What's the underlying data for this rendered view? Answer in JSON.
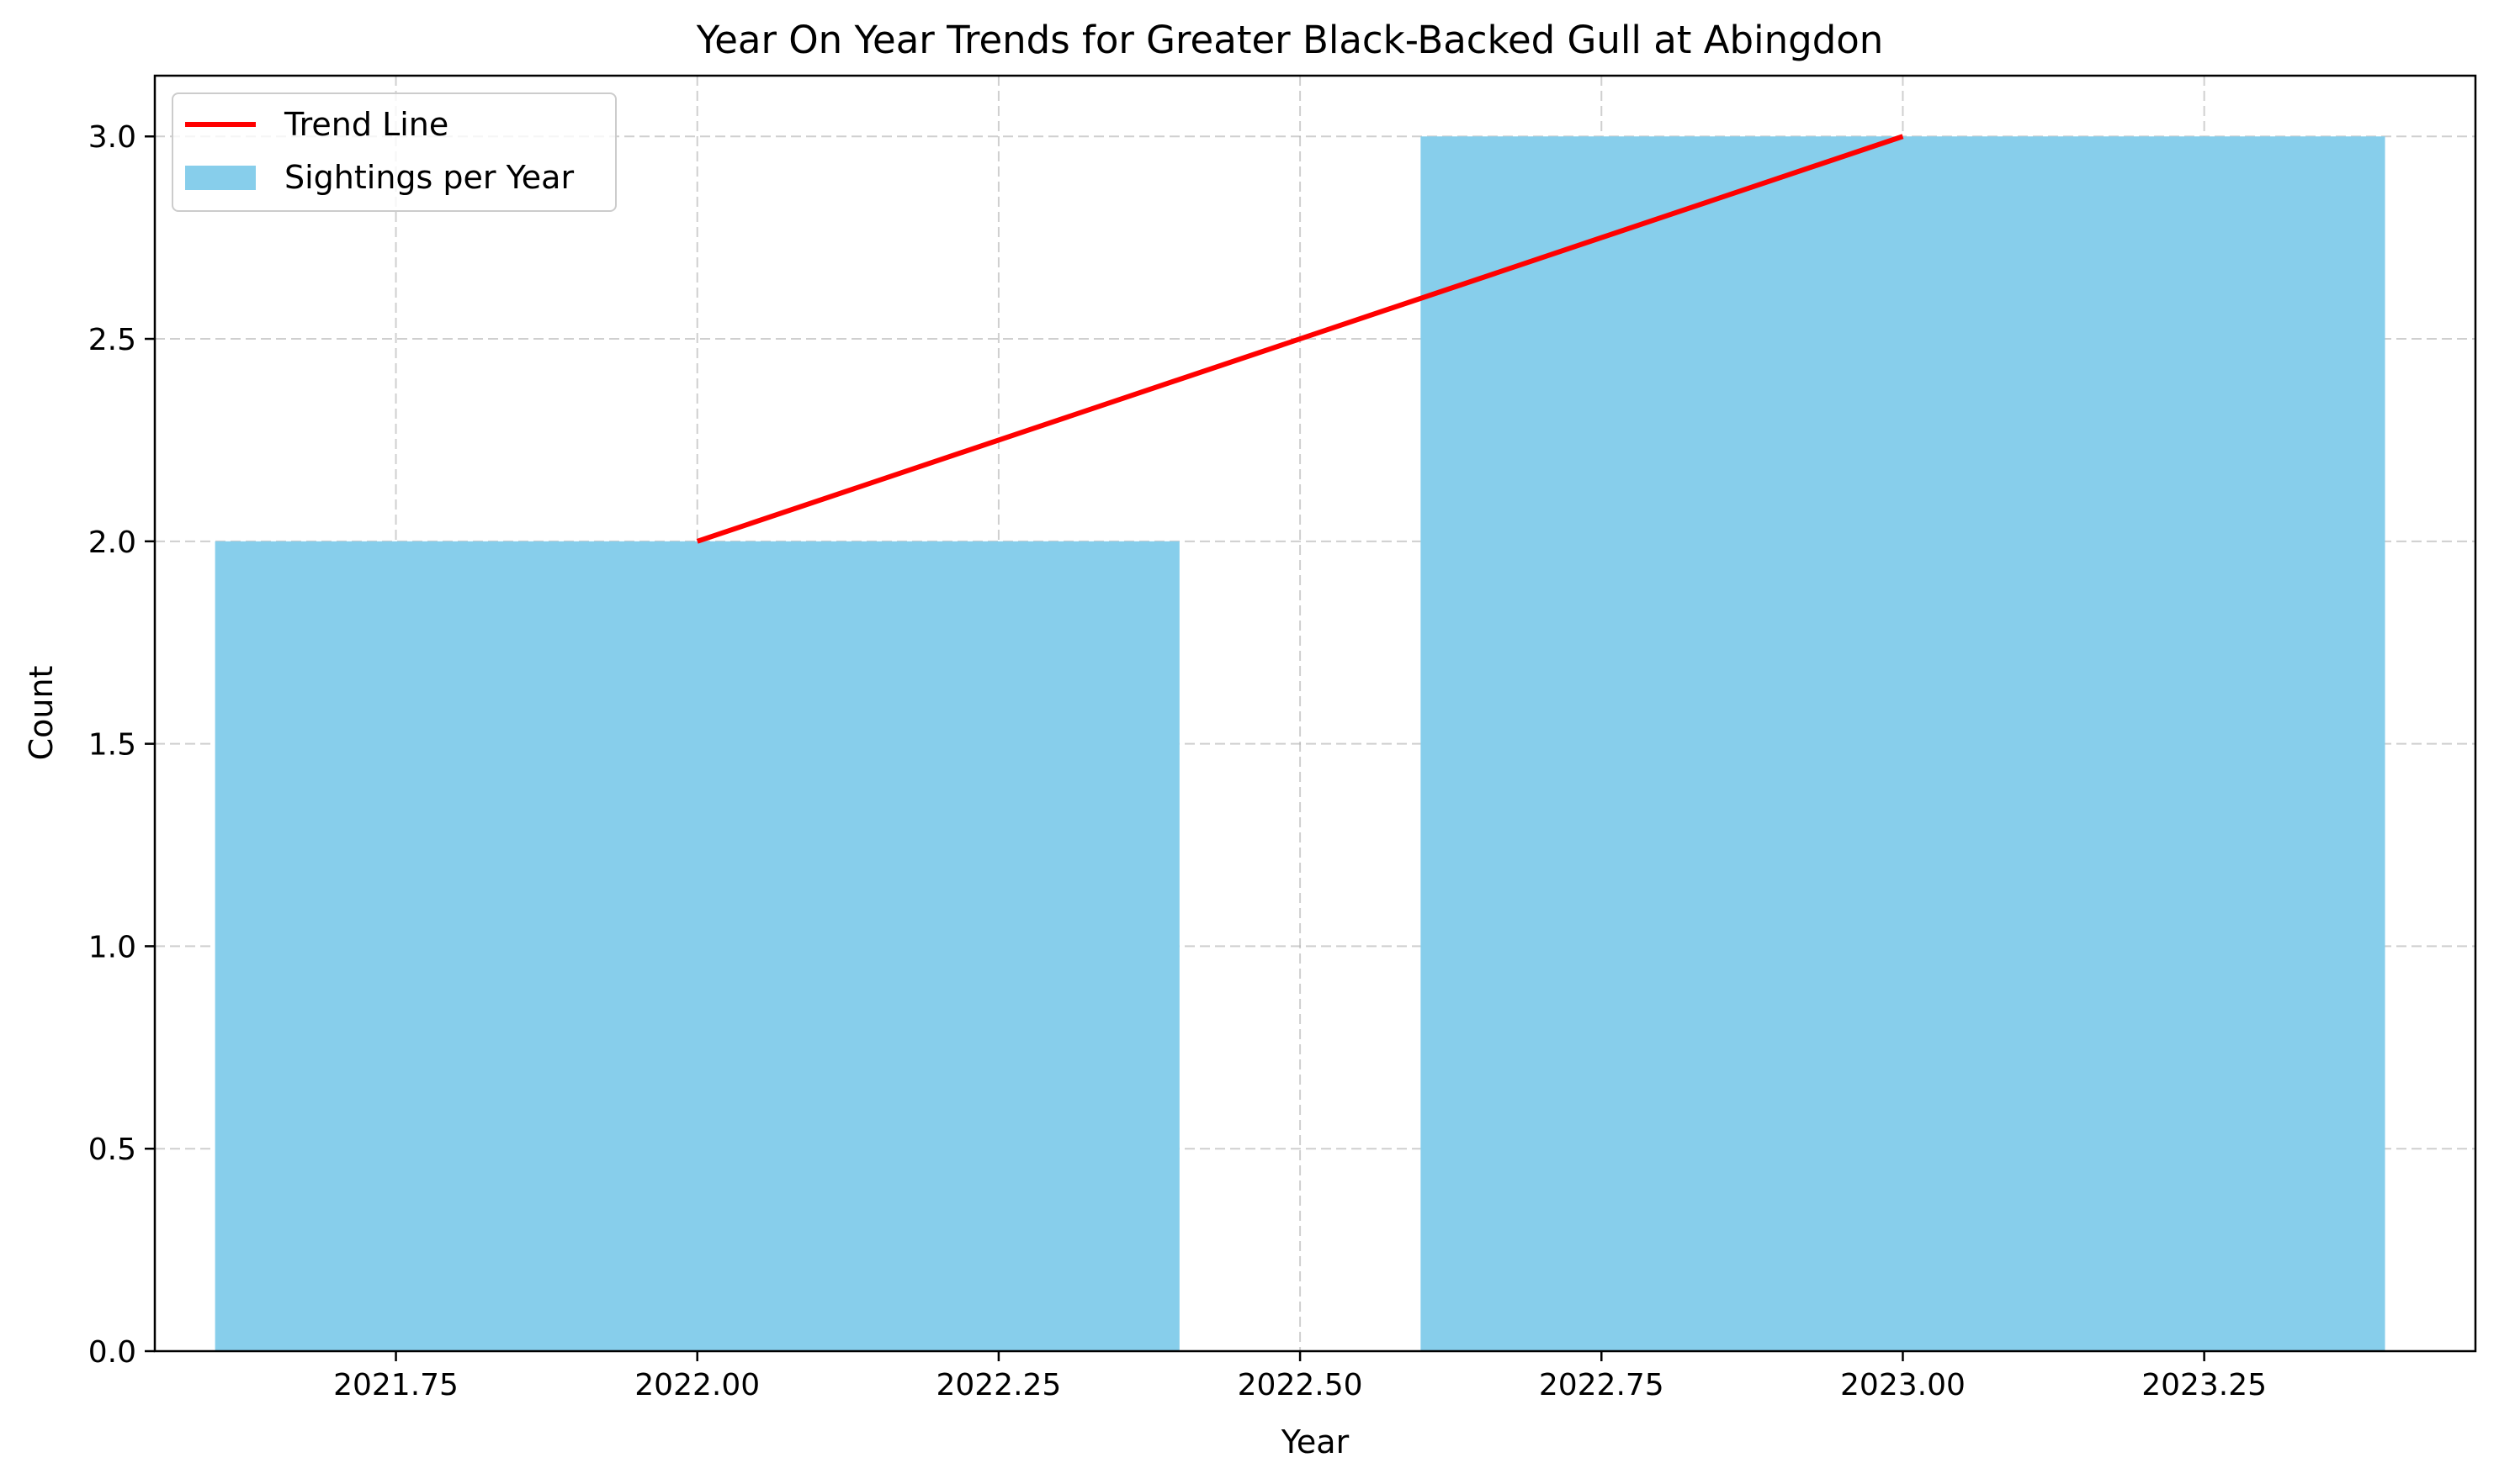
{
  "chart_data": {
    "type": "bar",
    "title": "Year On Year Trends for Greater Black-Backed Gull at Abingdon",
    "xlabel": "Year",
    "ylabel": "Count",
    "xlim": [
      2021.55,
      2023.475
    ],
    "ylim": [
      0,
      3.15
    ],
    "grid": true,
    "legend_position": "top-left",
    "bar_width": 0.8,
    "x_ticks": [
      2021.75,
      2022.0,
      2022.25,
      2022.5,
      2022.75,
      2023.0,
      2023.25
    ],
    "x_tick_labels": [
      "2021.75",
      "2022.00",
      "2022.25",
      "2022.50",
      "2022.75",
      "2023.00",
      "2023.25"
    ],
    "y_ticks": [
      0,
      0.5,
      1.0,
      1.5,
      2.0,
      2.5,
      3.0
    ],
    "y_tick_labels": [
      "0.0",
      "0.5",
      "1.0",
      "1.5",
      "2.0",
      "2.5",
      "3.0"
    ],
    "series": [
      {
        "name": "Sightings per Year",
        "kind": "bar",
        "color": "#87CEEB",
        "x": [
          2022,
          2023
        ],
        "values": [
          2,
          3
        ]
      },
      {
        "name": "Trend Line",
        "kind": "line",
        "color": "#ff0000",
        "x": [
          2022,
          2023
        ],
        "values": [
          2,
          3
        ]
      }
    ]
  }
}
